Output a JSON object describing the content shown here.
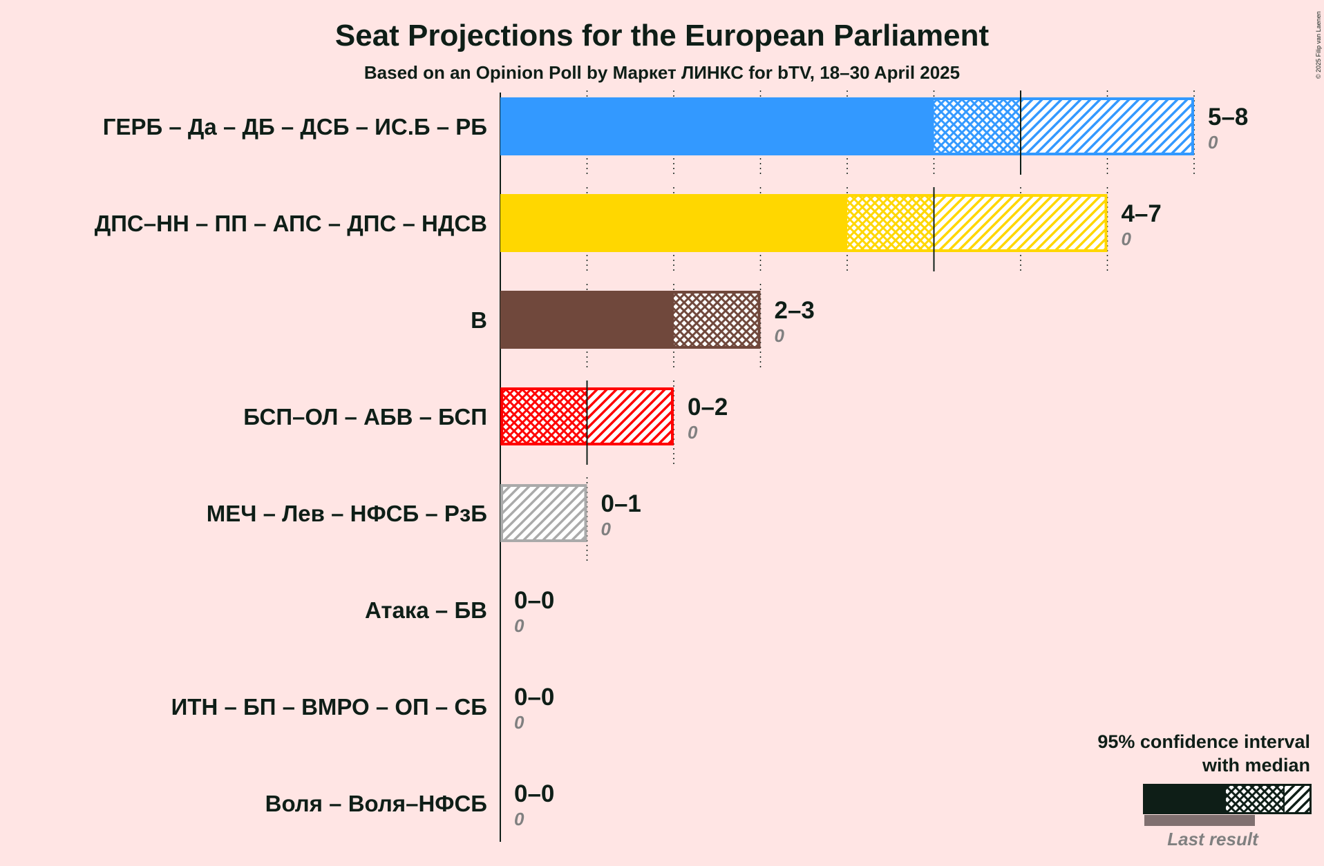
{
  "chart_data": {
    "type": "bar",
    "title": "Seat Projections for the European Parliament",
    "subtitle": "Based on an Opinion Poll by Маркет ЛИНКС for bTV, 18–30 April 2025",
    "copyright": "© 2025 Filip van Laenen",
    "xlim": [
      0,
      8
    ],
    "gridlines": [
      1,
      2,
      3,
      4,
      5,
      6,
      7,
      8
    ],
    "legend": {
      "line1": "95% confidence interval",
      "line2": "with median",
      "last_result": "Last result",
      "position": "bottom-right"
    },
    "parties": [
      {
        "name": "ГЕРБ – Да – ДБ – ДСБ – ИС.Б – РБ",
        "low": 5,
        "median": 6,
        "high": 8,
        "range_label": "5–8",
        "last_label": "0",
        "color": "#3399FF"
      },
      {
        "name": "ДПС–НН – ПП – АПС – ДПС – НДСВ",
        "low": 4,
        "median": 5,
        "high": 7,
        "range_label": "4–7",
        "last_label": "0",
        "color": "#FFD700"
      },
      {
        "name": "В",
        "low": 2,
        "median": 2,
        "high": 3,
        "range_label": "2–3",
        "last_label": "0",
        "color": "#70483C"
      },
      {
        "name": "БСП–ОЛ – АБВ – БСП",
        "low": 0,
        "median": 1,
        "high": 2,
        "range_label": "0–2",
        "last_label": "0",
        "color": "#FF0000"
      },
      {
        "name": "МЕЧ – Лев – НФСБ – РзБ",
        "low": 0,
        "median": 0,
        "high": 1,
        "range_label": "0–1",
        "last_label": "0",
        "color": "#AAAAAA"
      },
      {
        "name": "Атака – БВ",
        "low": 0,
        "median": 0,
        "high": 0,
        "range_label": "0–0",
        "last_label": "0",
        "color": "#0E1E17"
      },
      {
        "name": "ИТН – БП – ВМРО – ОП – СБ",
        "low": 0,
        "median": 0,
        "high": 0,
        "range_label": "0–0",
        "last_label": "0",
        "color": "#0E1E17"
      },
      {
        "name": "Воля – Воля–НФСБ",
        "low": 0,
        "median": 0,
        "high": 0,
        "range_label": "0–0",
        "last_label": "0",
        "color": "#0E1E17"
      }
    ]
  }
}
